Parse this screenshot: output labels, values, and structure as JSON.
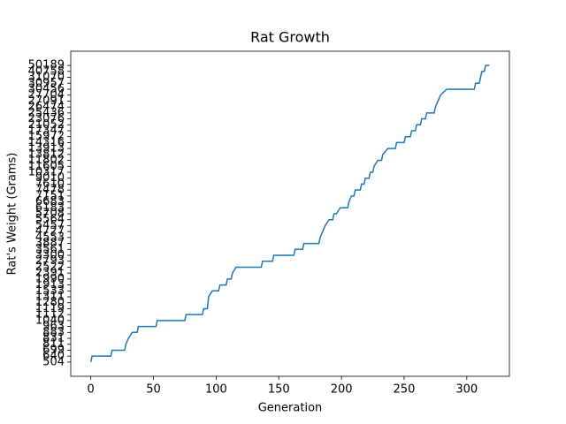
{
  "chart_data": {
    "type": "line",
    "title": "Rat Growth",
    "xlabel": "Generation",
    "ylabel": "Rat's Weight (Grams)",
    "x": [
      0,
      1,
      16,
      17,
      27,
      28,
      30,
      33,
      37,
      38,
      52,
      53,
      75,
      76,
      89,
      90,
      93,
      94,
      97,
      102,
      103,
      108,
      109,
      112,
      113,
      116,
      136,
      137,
      145,
      146,
      162,
      163,
      169,
      170,
      182,
      183,
      185,
      187,
      190,
      193,
      194,
      196,
      199,
      205,
      206,
      208,
      210,
      211,
      215,
      216,
      218,
      219,
      222,
      223,
      225,
      226,
      229,
      232,
      233,
      237,
      243,
      244,
      250,
      251,
      255,
      256,
      259,
      260,
      263,
      264,
      267,
      268,
      274,
      275,
      277,
      279,
      284,
      306,
      307,
      310,
      311,
      312,
      314,
      315,
      318
    ],
    "series": [
      {
        "name": "weight",
        "color": "#1f77b4",
        "values": [
          504,
          640,
          640,
          699,
          699,
          811,
          831,
          883,
          883,
          963,
          963,
          1040,
          1040,
          1112,
          1112,
          1119,
          1119,
          1311,
          1533,
          1533,
          1913,
          1913,
          1990,
          1990,
          2391,
          2522,
          2522,
          2793,
          2793,
          3300,
          3300,
          3561,
          3561,
          3887,
          3887,
          4553,
          4727,
          5457,
          5564,
          5564,
          5708,
          5708,
          6183,
          6183,
          6683,
          7151,
          7151,
          7478,
          7478,
          7610,
          7610,
          9010,
          9010,
          10317,
          10317,
          11605,
          11802,
          11802,
          13812,
          13913,
          13913,
          14316,
          14316,
          15972,
          15972,
          17347,
          17347,
          21052,
          21052,
          23076,
          23076,
          25436,
          25436,
          26474,
          27091,
          27704,
          30456,
          30456,
          30957,
          30957,
          31070,
          40758,
          40758,
          50189,
          50189
        ]
      }
    ],
    "xlim": [
      -16,
      334
    ],
    "xticks": [
      0,
      50,
      100,
      150,
      200,
      250,
      300
    ],
    "yticks": [
      504,
      640,
      699,
      811,
      831,
      883,
      963,
      1040,
      1112,
      1119,
      1280,
      1311,
      1533,
      1913,
      1990,
      2391,
      2522,
      2793,
      3300,
      3561,
      3887,
      4553,
      4727,
      5457,
      5564,
      5708,
      6183,
      6683,
      7151,
      7478,
      7610,
      9010,
      10317,
      11605,
      11802,
      13812,
      13913,
      14316,
      15972,
      17347,
      21052,
      23076,
      25436,
      26474,
      27091,
      27704,
      30456,
      30957,
      31070,
      40758,
      50189
    ],
    "y_scale": "categorical",
    "grid": false
  }
}
